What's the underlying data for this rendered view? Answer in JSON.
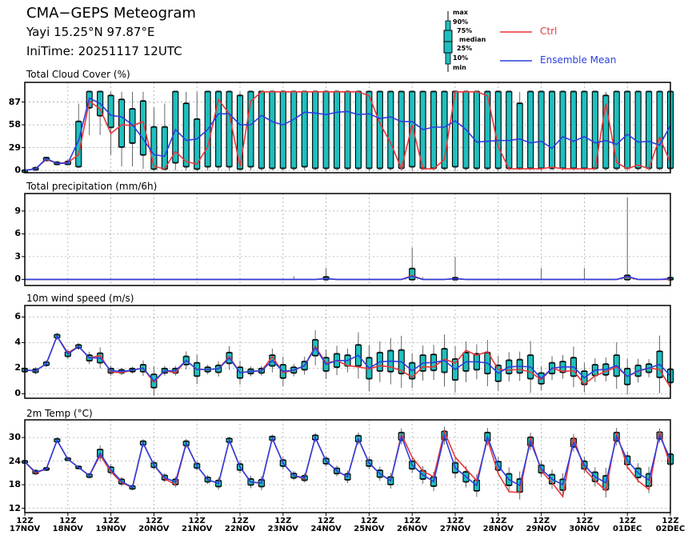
{
  "header": {
    "title": "CMA−GEPS Meteogram",
    "location": "Yayi 15.25°N 97.87°E",
    "init_time": "IniTime: 20251117 12UTC"
  },
  "legend": {
    "box_labels": [
      "max",
      "90%",
      "75%",
      "median",
      "25%",
      "10%",
      "min"
    ],
    "ctrl_label": "Ctrl",
    "mean_label": "Ensemble Mean",
    "ctrl_color": "#e8363a",
    "mean_color": "#2b3ee0",
    "box_color": "#1fbfbf"
  },
  "chart_data": [
    {
      "type": "line",
      "title": "Total Cloud Cover (%)",
      "yticks": [
        "87",
        "58",
        "29",
        "0"
      ],
      "ytick_values": [
        87,
        58,
        29,
        0
      ],
      "ylim": [
        -3,
        112
      ],
      "ctrl": [
        0,
        2,
        14,
        9,
        10,
        20,
        88,
        78,
        47,
        58,
        57,
        62,
        5,
        2,
        24,
        11,
        8,
        30,
        90,
        72,
        5,
        88,
        100,
        100,
        100,
        100,
        100,
        100,
        100,
        100,
        100,
        100,
        95,
        60,
        35,
        2,
        58,
        2,
        2,
        14,
        100,
        100,
        100,
        95,
        30,
        2,
        2,
        2,
        2,
        4,
        2,
        2,
        2,
        2,
        85,
        10,
        2,
        7,
        2,
        42,
        10
      ],
      "mean": [
        0,
        2,
        15,
        9,
        9,
        38,
        92,
        85,
        70,
        68,
        58,
        40,
        20,
        18,
        52,
        38,
        40,
        52,
        72,
        72,
        58,
        58,
        70,
        62,
        58,
        65,
        74,
        73,
        71,
        74,
        75,
        71,
        72,
        66,
        68,
        62,
        62,
        52,
        55,
        55,
        63,
        52,
        36,
        37,
        38,
        38,
        40,
        35,
        37,
        28,
        43,
        37,
        43,
        35,
        38,
        33,
        46,
        36,
        37,
        32,
        57
      ],
      "p25": [
        0,
        1,
        13,
        8,
        8,
        5,
        80,
        70,
        55,
        30,
        35,
        20,
        2,
        2,
        10,
        5,
        2,
        5,
        5,
        5,
        2,
        5,
        3,
        3,
        3,
        3,
        5,
        3,
        3,
        3,
        3,
        3,
        3,
        3,
        3,
        3,
        5,
        3,
        3,
        3,
        5,
        3,
        3,
        3,
        3,
        3,
        3,
        3,
        3,
        3,
        3,
        3,
        3,
        3,
        3,
        3,
        3,
        3,
        3,
        3,
        3
      ],
      "p75": [
        0,
        3,
        16,
        10,
        11,
        62,
        100,
        100,
        95,
        90,
        78,
        88,
        55,
        55,
        100,
        85,
        65,
        100,
        100,
        100,
        95,
        100,
        100,
        100,
        100,
        100,
        100,
        100,
        100,
        100,
        100,
        100,
        100,
        100,
        100,
        100,
        100,
        100,
        100,
        100,
        100,
        100,
        100,
        100,
        100,
        100,
        85,
        100,
        100,
        100,
        100,
        100,
        100,
        100,
        95,
        100,
        100,
        100,
        100,
        100,
        100
      ],
      "min": [
        0,
        0,
        12,
        7,
        7,
        3,
        45,
        45,
        20,
        5,
        5,
        2,
        0,
        0,
        0,
        0,
        0,
        0,
        0,
        0,
        0,
        0,
        0,
        0,
        0,
        0,
        0,
        0,
        0,
        0,
        0,
        0,
        0,
        0,
        0,
        0,
        0,
        0,
        0,
        0,
        0,
        0,
        0,
        0,
        0,
        0,
        0,
        0,
        0,
        0,
        0,
        0,
        0,
        0,
        0,
        0,
        0,
        0,
        0,
        0,
        0
      ],
      "max": [
        1,
        5,
        17,
        12,
        14,
        85,
        100,
        100,
        100,
        100,
        100,
        100,
        80,
        85,
        100,
        100,
        100,
        100,
        100,
        100,
        100,
        100,
        100,
        100,
        100,
        100,
        100,
        100,
        100,
        100,
        100,
        100,
        100,
        100,
        100,
        100,
        100,
        100,
        100,
        100,
        100,
        100,
        100,
        100,
        100,
        100,
        100,
        100,
        100,
        100,
        100,
        100,
        100,
        100,
        100,
        100,
        100,
        100,
        100,
        100,
        100
      ]
    },
    {
      "type": "line",
      "title": "Total precipitation (mm/6h)",
      "yticks": [
        "9",
        "6",
        "3",
        "0"
      ],
      "ytick_values": [
        9,
        6,
        3,
        0
      ],
      "ylim": [
        -0.8,
        11.3
      ],
      "ctrl": [
        0,
        0,
        0,
        0,
        0,
        0,
        0,
        0,
        0,
        0,
        0,
        0,
        0,
        0,
        0,
        0,
        0,
        0,
        0,
        0,
        0,
        0,
        0,
        0,
        0,
        0,
        0,
        0,
        0.1,
        0,
        0,
        0,
        0,
        0,
        0,
        0,
        0.5,
        0,
        0,
        0,
        0.1,
        0,
        0,
        0,
        0,
        0,
        0,
        0,
        0,
        0,
        0,
        0,
        0,
        0,
        0,
        0,
        0.3,
        0,
        0,
        0,
        0
      ],
      "mean": [
        0,
        0,
        0,
        0,
        0,
        0,
        0,
        0,
        0,
        0,
        0,
        0,
        0,
        0,
        0,
        0,
        0,
        0,
        0,
        0,
        0,
        0,
        0,
        0,
        0,
        0,
        0,
        0,
        0.1,
        0,
        0,
        0,
        0,
        0,
        0,
        0,
        0.4,
        0,
        0,
        0,
        0.1,
        0,
        0,
        0,
        0,
        0,
        0,
        0,
        0,
        0,
        0,
        0,
        0,
        0,
        0,
        0,
        0.4,
        0,
        0,
        0,
        0.1
      ],
      "p25": [
        0,
        0,
        0,
        0,
        0,
        0,
        0,
        0,
        0,
        0,
        0,
        0,
        0,
        0,
        0,
        0,
        0,
        0,
        0,
        0,
        0,
        0,
        0,
        0,
        0,
        0,
        0,
        0,
        0,
        0,
        0,
        0,
        0,
        0,
        0,
        0,
        0,
        0,
        0,
        0,
        0,
        0,
        0,
        0,
        0,
        0,
        0,
        0,
        0,
        0,
        0,
        0,
        0,
        0,
        0,
        0,
        0,
        0,
        0,
        0,
        0
      ],
      "p75": [
        0,
        0,
        0,
        0,
        0,
        0,
        0,
        0,
        0,
        0,
        0,
        0,
        0,
        0,
        0,
        0,
        0,
        0,
        0,
        0,
        0,
        0,
        0,
        0,
        0,
        0,
        0,
        0,
        0.3,
        0,
        0,
        0,
        0,
        0,
        0,
        0,
        1.4,
        0,
        0,
        0,
        0.2,
        0,
        0,
        0,
        0,
        0,
        0,
        0,
        0,
        0,
        0,
        0,
        0,
        0,
        0,
        0,
        0.5,
        0,
        0,
        0,
        0.2
      ],
      "min": [
        0,
        0,
        0,
        0,
        0,
        0,
        0,
        0,
        0,
        0,
        0,
        0,
        0,
        0,
        0,
        0,
        0,
        0,
        0,
        0,
        0,
        0,
        0,
        0,
        0,
        0,
        0,
        0,
        0,
        0,
        0,
        0,
        0,
        0,
        0,
        0,
        0,
        0,
        0,
        0,
        0,
        0,
        0,
        0,
        0,
        0,
        0,
        0,
        0,
        0,
        0,
        0,
        0,
        0,
        0,
        0,
        0,
        0,
        0,
        0,
        0
      ],
      "max": [
        0,
        0,
        0,
        0,
        0,
        0,
        0,
        0,
        0,
        0,
        0,
        0,
        0,
        0,
        0,
        0,
        0,
        0,
        0,
        0,
        0,
        0,
        0,
        0,
        0,
        0.4,
        0,
        0,
        1.5,
        0,
        0,
        0,
        0,
        0,
        0,
        0,
        4.2,
        0.3,
        0,
        0,
        3.0,
        0,
        0,
        0,
        0,
        0,
        0,
        0,
        1.5,
        0,
        0,
        0,
        1.5,
        0,
        0,
        0,
        10.8,
        0,
        0,
        0,
        1.8
      ]
    },
    {
      "type": "line",
      "title": "10m wind speed (m/s)",
      "yticks": [
        "6",
        "4",
        "2",
        "0"
      ],
      "ytick_values": [
        6,
        4,
        2,
        0
      ],
      "ylim": [
        -0.35,
        6.9
      ],
      "ctrl": [
        1.85,
        1.8,
        2.35,
        4.5,
        3.2,
        3.7,
        2.8,
        3.0,
        1.7,
        1.65,
        1.85,
        2.0,
        0.9,
        1.8,
        1.65,
        2.6,
        1.9,
        1.9,
        1.95,
        2.9,
        1.65,
        1.75,
        1.8,
        2.9,
        1.65,
        1.85,
        2.2,
        3.7,
        2.4,
        2.6,
        2.2,
        2.1,
        1.95,
        2.2,
        2.1,
        1.8,
        1.3,
        2.1,
        2.1,
        2.7,
        2.4,
        3.4,
        3.0,
        3.3,
        1.9,
        1.85,
        1.9,
        1.7,
        1.1,
        2.0,
        1.75,
        1.8,
        0.75,
        1.4,
        1.75,
        2.1,
        1.35,
        1.75,
        2.0,
        1.9,
        0.5
      ],
      "mean": [
        1.85,
        1.8,
        2.35,
        4.5,
        3.1,
        3.7,
        2.8,
        2.8,
        1.8,
        1.75,
        1.85,
        2.0,
        1.0,
        1.8,
        1.8,
        2.6,
        1.9,
        1.9,
        1.95,
        2.8,
        1.65,
        1.75,
        1.8,
        2.6,
        1.75,
        1.85,
        2.2,
        3.6,
        2.3,
        2.6,
        2.6,
        3.0,
        2.0,
        2.5,
        2.55,
        2.5,
        1.8,
        2.4,
        2.45,
        2.6,
        1.9,
        2.5,
        2.5,
        2.4,
        1.6,
        2.1,
        2.15,
        2.1,
        1.2,
        2.0,
        2.1,
        2.1,
        1.25,
        1.85,
        1.9,
        2.2,
        1.35,
        1.8,
        2.0,
        2.3,
        1.4
      ],
      "iqr_half": [
        0.1,
        0.1,
        0.1,
        0.1,
        0.15,
        0.1,
        0.2,
        0.35,
        0.15,
        0.1,
        0.1,
        0.25,
        0.5,
        0.15,
        0.15,
        0.3,
        0.5,
        0.15,
        0.25,
        0.4,
        0.4,
        0.15,
        0.15,
        0.4,
        0.5,
        0.2,
        0.3,
        0.6,
        0.5,
        0.5,
        0.4,
        0.8,
        0.8,
        0.7,
        0.8,
        0.9,
        0.6,
        0.6,
        0.6,
        0.9,
        0.8,
        0.7,
        0.6,
        0.8,
        0.6,
        0.5,
        0.5,
        0.9,
        0.4,
        0.4,
        0.4,
        0.7,
        0.5,
        0.4,
        0.4,
        0.8,
        0.6,
        0.4,
        0.3,
        1.0,
        0.5
      ]
    },
    {
      "type": "line",
      "title": "2m Temp (°C)",
      "yticks": [
        "30",
        "24",
        "18",
        "12"
      ],
      "ytick_values": [
        30,
        24,
        18,
        12
      ],
      "ylim": [
        10.9,
        34.5
      ],
      "ctrl": [
        23.8,
        21.0,
        22.0,
        29.3,
        24.5,
        22.4,
        20.3,
        25.5,
        21.3,
        18.5,
        17.3,
        28.6,
        23.0,
        19.5,
        18.0,
        28.5,
        22.8,
        19.3,
        18.3,
        29.3,
        22.5,
        18.7,
        18.4,
        29.8,
        23.5,
        20.3,
        19.5,
        30.0,
        24.0,
        21.5,
        20.0,
        29.7,
        23.5,
        20.8,
        19.0,
        30.8,
        25.0,
        21.5,
        20.0,
        31.5,
        25.0,
        22.0,
        19.0,
        29.5,
        20.8,
        16.2,
        16.0,
        30.0,
        21.5,
        18.5,
        15.0,
        30.0,
        22.0,
        19.0,
        16.5,
        31.2,
        22.5,
        19.0,
        16.8,
        31.5,
        22.8
      ],
      "mean": [
        23.8,
        21.2,
        22.0,
        29.3,
        24.5,
        22.4,
        20.3,
        26.0,
        21.8,
        18.8,
        17.3,
        28.6,
        23.0,
        19.8,
        18.7,
        28.5,
        22.8,
        19.3,
        18.3,
        29.3,
        22.5,
        18.7,
        18.4,
        29.8,
        23.5,
        20.3,
        19.7,
        30.0,
        24.0,
        21.5,
        20.0,
        29.7,
        23.5,
        20.8,
        19.0,
        30.3,
        23.0,
        20.5,
        18.8,
        30.5,
        22.3,
        20.0,
        17.8,
        30.2,
        22.8,
        19.3,
        17.8,
        29.0,
        22.0,
        19.4,
        18.0,
        28.7,
        23.0,
        20.0,
        18.5,
        30.2,
        24.2,
        21.0,
        19.2,
        30.5,
        24.5
      ],
      "iqr_half": [
        0.2,
        0.3,
        0.2,
        0.3,
        0.2,
        0.2,
        0.3,
        0.9,
        0.6,
        0.5,
        0.3,
        0.4,
        0.5,
        0.5,
        0.6,
        0.5,
        0.5,
        0.5,
        0.7,
        0.4,
        0.7,
        0.7,
        0.8,
        0.4,
        0.7,
        0.5,
        0.5,
        0.5,
        0.6,
        0.6,
        0.7,
        0.7,
        0.7,
        0.8,
        0.9,
        0.9,
        0.9,
        1.0,
        1.1,
        1.0,
        1.2,
        1.2,
        1.3,
        1.0,
        1.0,
        1.4,
        1.6,
        1.0,
        0.9,
        1.1,
        1.3,
        1.0,
        0.9,
        1.1,
        1.7,
        1.0,
        1.0,
        1.1,
        1.5,
        0.8,
        1.2
      ]
    }
  ],
  "x_axis": {
    "labels": [
      [
        "12Z",
        "17NOV"
      ],
      [
        "12Z",
        "18NOV"
      ],
      [
        "12Z",
        "19NOV"
      ],
      [
        "12Z",
        "20NOV"
      ],
      [
        "12Z",
        "21NOV"
      ],
      [
        "12Z",
        "22NOV"
      ],
      [
        "12Z",
        "23NOV"
      ],
      [
        "12Z",
        "24NOV"
      ],
      [
        "12Z",
        "25NOV"
      ],
      [
        "12Z",
        "26NOV"
      ],
      [
        "12Z",
        "27NOV"
      ],
      [
        "12Z",
        "28NOV"
      ],
      [
        "12Z",
        "29NOV"
      ],
      [
        "12Z",
        "30NOV"
      ],
      [
        "12Z",
        "01DEC"
      ],
      [
        "12Z",
        "02DEC"
      ]
    ],
    "step_hours": 6
  }
}
